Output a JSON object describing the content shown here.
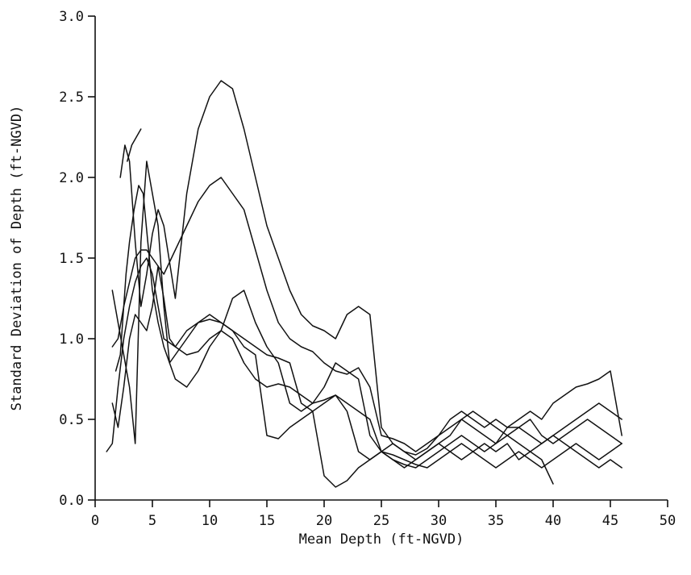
{
  "chart_data": {
    "type": "line",
    "title": "",
    "xlabel": "Mean Depth (ft-NGVD)",
    "ylabel": "Standard Deviation of Depth (ft-NGVD)",
    "xlim": [
      0,
      50
    ],
    "ylim": [
      0,
      3.0
    ],
    "xticks": [
      0,
      5,
      10,
      15,
      20,
      25,
      30,
      35,
      40,
      45,
      50
    ],
    "yticks": [
      0.0,
      0.5,
      1.0,
      1.5,
      2.0,
      2.5,
      3.0
    ],
    "xtick_labels": [
      "0",
      "5",
      "10",
      "15",
      "20",
      "25",
      "30",
      "35",
      "40",
      "45",
      "50"
    ],
    "ytick_labels": [
      "0.0",
      "0.5",
      "1.0",
      "1.5",
      "2.0",
      "2.5",
      "3.0"
    ],
    "grid": false,
    "legend": "none",
    "series": [
      {
        "x": [
          2.2,
          2.6,
          3.0,
          3.5,
          4.0,
          4.5,
          5.0,
          5.5,
          6.0,
          7.0,
          8.0,
          9.0,
          10.0,
          11.0,
          12.0,
          13.0,
          14.0,
          15.0,
          16.0,
          17.0,
          18.0,
          19.0,
          20.0,
          21.0,
          22.0,
          23.0,
          24.0,
          25.0,
          26.0,
          27.0,
          28.0,
          29.0,
          30.0,
          31.0,
          32.0,
          33.0,
          34.0,
          35.0,
          36.0,
          37.0,
          38.0,
          39.0,
          40.0
        ],
        "y": [
          2.0,
          2.2,
          2.1,
          1.6,
          1.2,
          1.4,
          1.65,
          1.8,
          1.7,
          1.25,
          1.9,
          2.3,
          2.5,
          2.6,
          2.55,
          2.3,
          2.0,
          1.7,
          1.5,
          1.3,
          1.15,
          1.08,
          1.05,
          1.0,
          1.15,
          1.2,
          1.15,
          0.45,
          0.35,
          0.3,
          0.28,
          0.32,
          0.4,
          0.45,
          0.5,
          0.55,
          0.5,
          0.45,
          0.4,
          0.35,
          0.3,
          0.25,
          0.1
        ]
      },
      {
        "x": [
          1.5,
          2.0,
          2.5,
          3.0,
          3.5,
          4.0,
          4.5,
          5.0,
          5.5,
          6.0,
          7.0,
          8.0,
          9.0,
          10.0,
          11.0,
          12.0,
          13.0,
          14.0,
          15.0,
          16.0,
          17.0,
          18.0,
          19.0,
          20.0,
          21.0,
          22.0,
          23.0,
          24.0,
          25.0,
          26.0,
          27.0,
          28.0,
          29.0,
          30.0,
          31.0,
          32.0,
          33.0,
          34.0,
          35.0,
          36.0,
          37.0,
          38.0,
          39.0,
          40.0,
          41.0,
          42.0,
          43.0,
          44.0,
          45.0,
          46.0
        ],
        "y": [
          0.95,
          1.0,
          1.2,
          1.35,
          1.5,
          1.55,
          1.55,
          1.5,
          1.45,
          1.4,
          1.55,
          1.7,
          1.85,
          1.95,
          2.0,
          1.9,
          1.8,
          1.55,
          1.3,
          1.1,
          1.0,
          0.95,
          0.92,
          0.85,
          0.8,
          0.78,
          0.82,
          0.7,
          0.4,
          0.38,
          0.35,
          0.3,
          0.35,
          0.4,
          0.5,
          0.55,
          0.5,
          0.45,
          0.5,
          0.45,
          0.45,
          0.5,
          0.4,
          0.35,
          0.4,
          0.45,
          0.5,
          0.45,
          0.4,
          0.35
        ]
      },
      {
        "x": [
          1.8,
          2.2,
          2.7,
          3.0,
          3.4,
          3.8,
          4.2,
          4.6,
          5.0,
          5.5,
          6.0,
          7.0,
          8.0,
          9.0,
          10.0,
          11.0,
          12.0,
          13.0,
          14.0,
          15.0,
          16.0,
          17.0,
          18.0,
          19.0,
          20.0,
          21.0,
          22.0,
          23.0,
          24.0,
          25.0,
          26.0,
          27.0,
          28.0,
          29.0,
          30.0,
          31.0,
          32.0,
          33.0,
          34.0,
          35.0,
          36.0,
          37.0,
          38.0,
          39.0,
          40.0,
          41.0,
          42.0,
          43.0,
          44.0,
          45.0,
          46.0
        ],
        "y": [
          0.8,
          0.9,
          1.4,
          1.6,
          1.8,
          1.95,
          1.9,
          1.6,
          1.3,
          1.1,
          0.95,
          0.75,
          0.7,
          0.8,
          0.95,
          1.05,
          1.0,
          0.85,
          0.75,
          0.7,
          0.72,
          0.7,
          0.65,
          0.6,
          0.62,
          0.65,
          0.6,
          0.55,
          0.5,
          0.3,
          0.25,
          0.22,
          0.2,
          0.25,
          0.3,
          0.35,
          0.4,
          0.35,
          0.3,
          0.35,
          0.4,
          0.45,
          0.4,
          0.35,
          0.4,
          0.45,
          0.5,
          0.55,
          0.6,
          0.55,
          0.5
        ]
      },
      {
        "x": [
          1.5,
          2.0,
          2.5,
          3.0,
          3.5,
          4.0,
          4.5,
          5.0,
          5.5,
          6.0,
          6.5,
          7.0,
          8.0,
          9.0,
          10.0,
          11.0,
          12.0,
          13.0,
          14.0,
          15.0,
          16.0,
          17.0,
          18.0,
          19.0,
          20.0,
          21.0,
          22.0,
          23.0,
          24.0,
          25.0,
          26.0,
          27.0,
          28.0,
          29.0,
          30.0,
          31.0,
          32.0,
          33.0,
          34.0,
          35.0,
          36.0,
          37.0,
          38.0,
          39.0,
          40.0,
          41.0,
          42.0,
          43.0,
          44.0,
          45.0,
          46.0
        ],
        "y": [
          1.3,
          1.1,
          0.9,
          0.7,
          0.35,
          1.6,
          2.1,
          1.9,
          1.7,
          1.2,
          0.85,
          0.9,
          1.0,
          1.1,
          1.15,
          1.1,
          1.05,
          1.0,
          0.95,
          0.9,
          0.88,
          0.85,
          0.6,
          0.55,
          0.6,
          0.65,
          0.55,
          0.3,
          0.25,
          0.3,
          0.35,
          0.3,
          0.25,
          0.3,
          0.35,
          0.4,
          0.5,
          0.45,
          0.4,
          0.35,
          0.45,
          0.5,
          0.55,
          0.5,
          0.6,
          0.65,
          0.7,
          0.72,
          0.75,
          0.8,
          0.4
        ]
      },
      {
        "x": [
          1.5,
          2.0,
          2.5,
          3.0,
          3.5,
          4.0,
          4.5,
          5.0,
          5.5,
          6.0,
          6.5,
          7.0,
          8.0,
          9.0,
          10.0,
          11.0,
          12.0,
          13.0,
          14.0,
          15.0,
          16.0,
          17.0,
          18.0,
          19.0,
          20.0,
          21.0,
          22.0,
          23.0,
          24.0,
          25.0,
          26.0,
          27.0,
          28.0,
          29.0,
          30.0,
          31.0,
          32.0,
          33.0,
          34.0,
          35.0,
          36.0,
          37.0,
          38.0,
          39.0,
          40.0,
          41.0,
          42.0,
          43.0,
          44.0,
          45.0,
          46.0
        ],
        "y": [
          0.6,
          0.45,
          0.7,
          1.0,
          1.15,
          1.1,
          1.05,
          1.2,
          1.45,
          1.25,
          1.0,
          0.95,
          0.9,
          0.92,
          1.0,
          1.05,
          1.25,
          1.3,
          1.1,
          0.95,
          0.85,
          0.6,
          0.55,
          0.6,
          0.7,
          0.85,
          0.8,
          0.75,
          0.4,
          0.3,
          0.25,
          0.2,
          0.25,
          0.3,
          0.35,
          0.3,
          0.25,
          0.3,
          0.35,
          0.3,
          0.35,
          0.25,
          0.3,
          0.35,
          0.4,
          0.35,
          0.3,
          0.25,
          0.2,
          0.25,
          0.2
        ]
      },
      {
        "x": [
          1.0,
          1.5,
          2.0,
          2.5,
          3.0,
          3.5,
          4.0,
          4.5,
          5.0,
          5.5,
          6.0,
          7.0,
          8.0,
          9.0,
          10.0,
          11.0,
          12.0,
          13.0,
          14.0,
          15.0,
          16.0,
          17.0,
          18.0,
          19.0,
          20.0,
          21.0,
          22.0,
          23.0,
          24.0,
          25.0,
          26.0,
          27.0,
          28.0,
          29.0,
          30.0,
          31.0,
          32.0,
          33.0,
          34.0,
          35.0,
          36.0,
          37.0,
          38.0,
          39.0,
          40.0,
          41.0,
          42.0,
          43.0,
          44.0,
          45.0,
          46.0
        ],
        "y": [
          0.3,
          0.35,
          0.7,
          1.0,
          1.2,
          1.35,
          1.45,
          1.5,
          1.4,
          1.2,
          1.0,
          0.95,
          1.05,
          1.1,
          1.12,
          1.1,
          1.05,
          0.95,
          0.9,
          0.4,
          0.38,
          0.45,
          0.5,
          0.55,
          0.15,
          0.08,
          0.12,
          0.2,
          0.25,
          0.3,
          0.28,
          0.25,
          0.22,
          0.2,
          0.25,
          0.3,
          0.35,
          0.3,
          0.25,
          0.2,
          0.25,
          0.3,
          0.25,
          0.2,
          0.25,
          0.3,
          0.35,
          0.3,
          0.25,
          0.3,
          0.35
        ]
      },
      {
        "x": [
          2.8,
          3.2,
          3.6,
          4.0
        ],
        "y": [
          2.1,
          2.2,
          2.25,
          2.3
        ]
      }
    ]
  }
}
